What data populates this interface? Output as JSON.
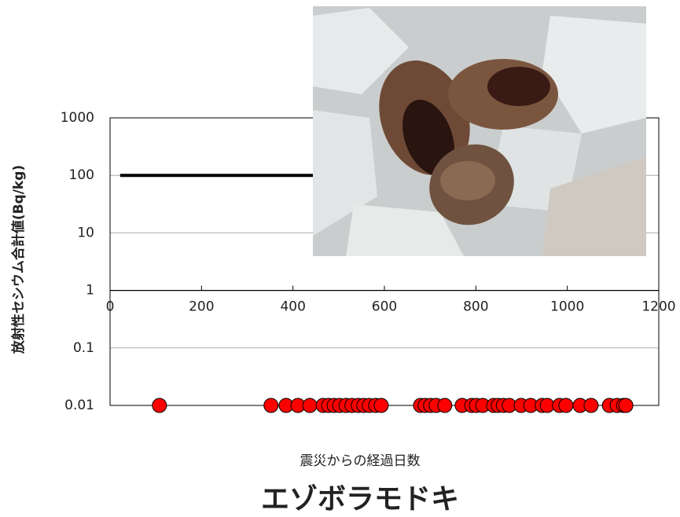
{
  "chart_data": {
    "type": "scatter",
    "title": "エゾボラモドキ",
    "x_label": "震災からの経過日数",
    "y_label": "放射性セシウム合計値(Bq/kg)",
    "log_y": true,
    "grid": true,
    "xlim": [
      0,
      1200
    ],
    "xticks": [
      0,
      200,
      400,
      600,
      800,
      1000,
      1200
    ],
    "ylim": [
      0.01,
      1000
    ],
    "yticks": [
      0.01,
      0.1,
      1,
      10,
      100,
      1000
    ],
    "series": [
      {
        "color": "#ff0000",
        "x": [
          108,
          352,
          385,
          411,
          437,
          466,
          478,
          490,
          502,
          516,
          529,
          543,
          555,
          567,
          581,
          593,
          679,
          689,
          701,
          713,
          732,
          770,
          791,
          801,
          815,
          839,
          849,
          860,
          873,
          899,
          920,
          945,
          956,
          983,
          997,
          1028,
          1052,
          1092,
          1109,
          1123,
          1128
        ],
        "values": [
          0.01,
          0.01,
          0.01,
          0.01,
          0.01,
          0.01,
          0.01,
          0.01,
          0.01,
          0.01,
          0.01,
          0.01,
          0.01,
          0.01,
          0.01,
          0.01,
          0.01,
          0.01,
          0.01,
          0.01,
          0.01,
          0.01,
          0.01,
          0.01,
          0.01,
          0.01,
          0.01,
          0.01,
          0.01,
          0.01,
          0.01,
          0.01,
          0.01,
          0.01,
          0.01,
          0.01,
          0.01,
          0.01,
          0.01,
          0.01,
          0.01
        ]
      }
    ],
    "reference_line": {
      "color": "#000000",
      "x": [
        22,
        1130
      ],
      "values": [
        100,
        100
      ]
    }
  }
}
